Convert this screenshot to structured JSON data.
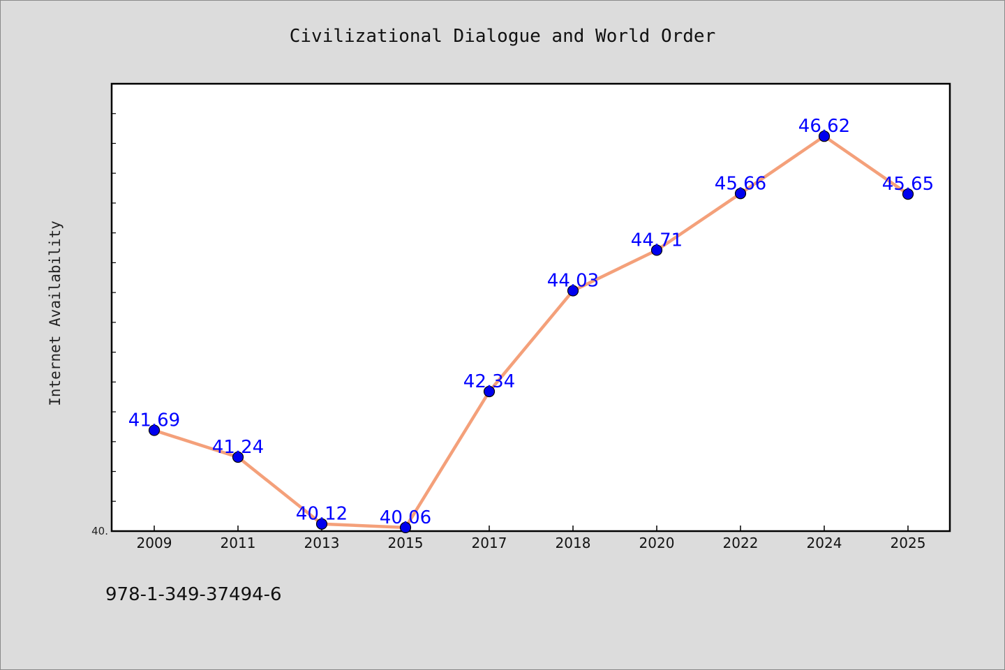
{
  "chart_data": {
    "type": "line",
    "title": "Civilizational Dialogue and World Order",
    "xlabel": "",
    "ylabel": "Internet Availability",
    "categories": [
      "2009",
      "2011",
      "2013",
      "2015",
      "2017",
      "2018",
      "2020",
      "2022",
      "2024",
      "2025"
    ],
    "series": [
      {
        "values": [
          41.69,
          41.24,
          40.12,
          40.06,
          42.34,
          44.03,
          44.71,
          45.66,
          46.62,
          45.65
        ],
        "labels": [
          "41.69",
          "41.24",
          "40.12",
          "40.06",
          "42.34",
          "44.03",
          "44.71",
          "45.66",
          "46.62",
          "45.65"
        ]
      }
    ],
    "ylim": [
      40.0,
      47.5
    ],
    "y_tick_label": "40.",
    "grid": false,
    "legend": "none",
    "line_color": "#f4a07a",
    "marker_color": "#0000ee",
    "label_color": "#0000ff"
  },
  "footer": {
    "isbn": "978-1-349-37494-6"
  }
}
